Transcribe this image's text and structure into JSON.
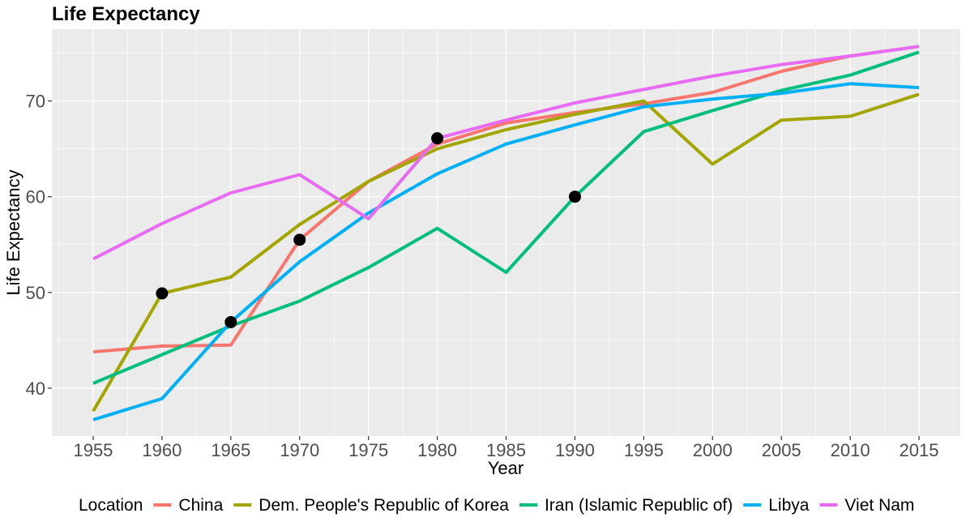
{
  "chart_data": {
    "type": "line",
    "title": "Life Expectancy",
    "xlabel": "Year",
    "ylabel": "Life Expectancy",
    "xlim": [
      1952,
      2018
    ],
    "ylim": [
      35,
      77.5
    ],
    "x_ticks": [
      1955,
      1960,
      1965,
      1970,
      1975,
      1980,
      1985,
      1990,
      1995,
      2000,
      2005,
      2010,
      2015
    ],
    "y_ticks": [
      40,
      50,
      60,
      70
    ],
    "x": [
      1955,
      1960,
      1965,
      1970,
      1975,
      1980,
      1985,
      1990,
      1995,
      2000,
      2005,
      2010,
      2015
    ],
    "legend_title": "Location",
    "legend_position": "bottom",
    "grid": true,
    "series": [
      {
        "name": "China",
        "color": "#F8766D",
        "values": [
          43.8,
          44.4,
          44.5,
          55.5,
          61.6,
          65.5,
          67.7,
          68.8,
          69.7,
          70.9,
          73.1,
          74.7,
          75.7
        ]
      },
      {
        "name": "Dem. People's Republic of Korea",
        "color": "#A3A500",
        "values": [
          37.6,
          49.9,
          51.6,
          57.1,
          61.6,
          65.0,
          67.0,
          68.6,
          70.0,
          63.4,
          68.0,
          68.4,
          70.7
        ]
      },
      {
        "name": "Iran (Islamic Republic of)",
        "color": "#00BF7D",
        "values": [
          40.5,
          43.5,
          46.5,
          49.1,
          52.6,
          56.7,
          52.1,
          60.0,
          66.8,
          69.0,
          71.1,
          72.7,
          75.1
        ]
      },
      {
        "name": "Libya",
        "color": "#00B0F6",
        "values": [
          36.7,
          38.9,
          46.9,
          53.2,
          58.3,
          62.4,
          65.5,
          67.5,
          69.4,
          70.2,
          70.8,
          71.8,
          71.4
        ]
      },
      {
        "name": "Viet Nam",
        "color": "#E76BF3",
        "values": [
          53.5,
          57.2,
          60.4,
          62.3,
          57.7,
          66.1,
          68.0,
          69.8,
          71.2,
          72.6,
          73.8,
          74.7,
          75.7
        ]
      }
    ],
    "highlight_points": [
      {
        "x": 1960,
        "y": 49.9
      },
      {
        "x": 1965,
        "y": 46.9
      },
      {
        "x": 1970,
        "y": 55.5
      },
      {
        "x": 1980,
        "y": 66.1
      },
      {
        "x": 1990,
        "y": 60.0
      }
    ]
  }
}
